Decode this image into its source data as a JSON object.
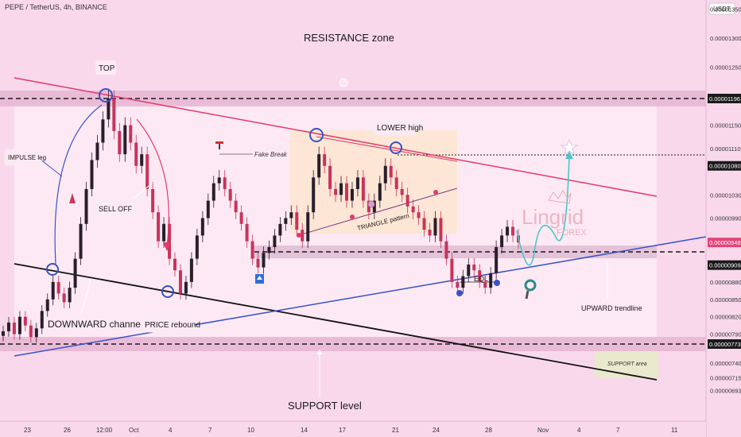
{
  "header": {
    "symbol": "PEPE / TetherUS, 4h, BINANCE",
    "currency": "USDT"
  },
  "chart_data": {
    "type": "candlestick",
    "ylim": [
      6.8e-06,
      1.4e-05
    ],
    "x_ticks": [
      "23",
      "26",
      "12:00",
      "Oct",
      "4",
      "7",
      "10",
      "14",
      "17",
      "21",
      "24",
      "28",
      "Nov",
      "4",
      "7",
      "11"
    ],
    "y_ticks": [
      "0.00001350",
      "0.00001300",
      "0.00001250",
      "0.00001150",
      "0.00001110",
      "0.00001030",
      "0.00000990",
      "0.00000880",
      "0.00000850",
      "0.00000820",
      "0.00000790",
      "0.00000740",
      "0.00000715",
      "0.00000693"
    ],
    "highlighted_prices": [
      {
        "label": "0.00001196",
        "color": "#1a1a1a",
        "price": 1.196e-05
      },
      {
        "label": "0.00001080",
        "color": "#1a1a1a",
        "price": 1.08e-05
      },
      {
        "label": "0.00000948",
        "color": "#e0457b",
        "price": 9.48e-06
      },
      {
        "label": "0.00000909",
        "color": "#1a1a1a",
        "price": 9.09e-06
      },
      {
        "label": "0.00000773",
        "color": "#1a1a1a",
        "price": 7.73e-06
      }
    ],
    "close_series": [
      7.95e-06,
      8.1e-06,
      7.9e-06,
      8.2e-06,
      8.05e-06,
      7.85e-06,
      8e-06,
      8.3e-06,
      8.5e-06,
      8.8e-06,
      8.6e-06,
      8.45e-06,
      8.7e-06,
      9.2e-06,
      9.8e-06,
      1.04e-05,
      1.09e-05,
      1.12e-05,
      1.16e-05,
      1.196e-05,
      1.14e-05,
      1.1e-05,
      1.15e-05,
      1.12e-05,
      1.08e-05,
      1.1e-05,
      1.04e-05,
      1e-05,
      9.5e-06,
      9.8e-06,
      9.2e-06,
      9e-06,
      8.6e-06,
      8.8e-06,
      9.2e-06,
      9.6e-06,
      9.9e-06,
      1.02e-05,
      1.05e-05,
      1.06e-05,
      1.04e-05,
      1.02e-05,
      1e-05,
      9.8e-06,
      9.5e-06,
      9.2e-06,
      9.05e-06,
      9.3e-06,
      9.4e-06,
      9.6e-06,
      9.8e-06,
      9.9e-06,
      1e-05,
      9.7e-06,
      9.5e-06,
      1e-05,
      1.06e-05,
      1.1e-05,
      1.08e-05,
      1.04e-05,
      1.03e-05,
      1.05e-05,
      1.02e-05,
      1.04e-05,
      1.06e-05,
      1.02e-05,
      1e-05,
      1.02e-05,
      1.05e-05,
      1.08e-05,
      1.06e-05,
      1.04e-05,
      1.03e-05,
      1.01e-05,
      1e-05,
      9.9e-06,
      9.7e-06,
      9.6e-06,
      9.9e-06,
      9.5e-06,
      9.2e-06,
      8.8e-06,
      8.7e-06,
      8.9e-06,
      9.1e-06,
      9e-06,
      8.8e-06,
      8.7e-06,
      8.95e-06,
      9.4e-06,
      9.6e-06,
      9.75e-06,
      9.6e-06,
      9.48e-06
    ],
    "annotations": {
      "resistance_zone": "RESISTANCE zone",
      "top": "TOP",
      "impulse": "IMPULSE leg",
      "sell_off": "SELL OFF",
      "fake_break": "Fake Break",
      "lower_high": "LOWER high",
      "triangle": "TRIANGLE pattern",
      "downward_channel": "DOWNWARD channel",
      "price_rebound": "PRICE rebound",
      "eql": "EQL",
      "upward_trendline": "UPWARD trendline",
      "support_area": "SUPPORT area",
      "support_level": "SUPPORT level",
      "watermark": "Lingrid",
      "watermark_sub": "FOREX"
    }
  }
}
